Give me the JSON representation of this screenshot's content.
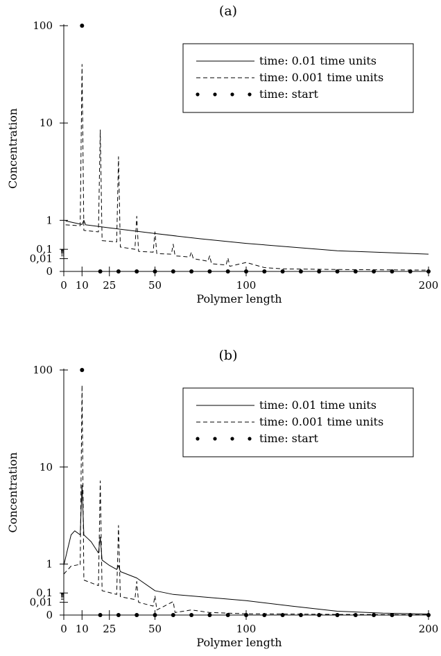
{
  "chart_data": [
    {
      "type": "line",
      "label": "(a)",
      "xlabel": "Polymer length",
      "ylabel": "Concentration",
      "xlim": [
        0,
        200
      ],
      "y_scale": "piecewise-log",
      "x_ticks": [
        {
          "v": 0,
          "t": "0"
        },
        {
          "v": 10,
          "t": "10"
        },
        {
          "v": 25,
          "t": "25"
        },
        {
          "v": 50,
          "t": "50"
        },
        {
          "v": 100,
          "t": "100"
        },
        {
          "v": 200,
          "t": "200"
        }
      ],
      "y_ticks": [
        {
          "v": 0,
          "t": "0"
        },
        {
          "v": 0.01,
          "t": "0,01"
        },
        {
          "v": 0.1,
          "t": "0,1"
        },
        {
          "v": 1,
          "t": "1"
        },
        {
          "v": 10,
          "t": "10"
        },
        {
          "v": 100,
          "t": "100"
        }
      ],
      "legend": {
        "position": "top-right",
        "entries": [
          "time: 0.01 time units",
          "time: 0.001 time units",
          "time: start"
        ]
      },
      "series": [
        {
          "name": "time: 0.01 time units",
          "style": "solid",
          "points": [
            [
              1,
              0.95
            ],
            [
              10,
              0.72
            ],
            [
              11,
              1.0
            ],
            [
              12,
              0.7
            ],
            [
              25,
              0.55
            ],
            [
              50,
              0.35
            ],
            [
              75,
              0.23
            ],
            [
              100,
              0.16
            ],
            [
              150,
              0.07
            ],
            [
              200,
              0.03
            ]
          ]
        },
        {
          "name": "time: 0.001 time units",
          "style": "dashed",
          "points": [
            [
              1,
              0.7
            ],
            [
              9,
              0.65
            ],
            [
              10,
              40
            ],
            [
              11,
              0.45
            ],
            [
              19,
              0.4
            ],
            [
              20,
              8.5
            ],
            [
              21,
              0.2
            ],
            [
              29,
              0.18
            ],
            [
              30,
              4.5
            ],
            [
              31,
              0.12
            ],
            [
              39,
              0.1
            ],
            [
              40,
              1.1
            ],
            [
              41,
              0.06
            ],
            [
              49,
              0.05
            ],
            [
              50,
              0.4
            ],
            [
              51,
              0.035
            ],
            [
              59,
              0.03
            ],
            [
              60,
              0.15
            ],
            [
              61,
              0.02
            ],
            [
              69,
              0.015
            ],
            [
              70,
              0.05
            ],
            [
              71,
              0.01
            ],
            [
              79,
              0.008
            ],
            [
              80,
              0.02
            ],
            [
              81,
              0.006
            ],
            [
              89,
              0.005
            ],
            [
              90,
              0.012
            ],
            [
              91,
              0.004
            ],
            [
              100,
              0.007
            ],
            [
              110,
              0.003
            ],
            [
              120,
              0.002
            ],
            [
              150,
              0.0015
            ],
            [
              200,
              0.001
            ]
          ]
        },
        {
          "name": "time: start",
          "style": "dots",
          "points": [
            [
              10,
              100
            ],
            [
              20,
              0
            ],
            [
              30,
              0
            ],
            [
              40,
              0
            ],
            [
              50,
              0
            ],
            [
              60,
              0
            ],
            [
              70,
              0
            ],
            [
              80,
              0
            ],
            [
              90,
              0
            ],
            [
              100,
              0
            ],
            [
              110,
              0
            ],
            [
              120,
              0
            ],
            [
              130,
              0
            ],
            [
              140,
              0
            ],
            [
              150,
              0
            ],
            [
              160,
              0
            ],
            [
              170,
              0
            ],
            [
              180,
              0
            ],
            [
              190,
              0
            ],
            [
              200,
              0
            ]
          ]
        }
      ]
    },
    {
      "type": "line",
      "label": "(b)",
      "xlabel": "Polymer length",
      "ylabel": "Concentration",
      "xlim": [
        0,
        200
      ],
      "y_scale": "piecewise-log",
      "x_ticks": [
        {
          "v": 0,
          "t": "0"
        },
        {
          "v": 10,
          "t": "10"
        },
        {
          "v": 25,
          "t": "25"
        },
        {
          "v": 50,
          "t": "50"
        },
        {
          "v": 100,
          "t": "100"
        },
        {
          "v": 200,
          "t": "200"
        }
      ],
      "y_ticks": [
        {
          "v": 0,
          "t": "0"
        },
        {
          "v": 0.01,
          "t": "0,01"
        },
        {
          "v": 0.1,
          "t": "0,1"
        },
        {
          "v": 1,
          "t": "1"
        },
        {
          "v": 10,
          "t": "10"
        },
        {
          "v": 100,
          "t": "100"
        }
      ],
      "legend": {
        "position": "top-right",
        "entries": [
          "time: 0.01 time units",
          "time: 0.001 time units",
          "time: start"
        ]
      },
      "series": [
        {
          "name": "time: 0.01 time units",
          "style": "solid",
          "points": [
            [
              0,
              0.9
            ],
            [
              2,
              1.4
            ],
            [
              4,
              2.0
            ],
            [
              6,
              2.2
            ],
            [
              9,
              2.0
            ],
            [
              10,
              6.5
            ],
            [
              11,
              2.0
            ],
            [
              15,
              1.7
            ],
            [
              19,
              1.3
            ],
            [
              20,
              1.9
            ],
            [
              21,
              1.1
            ],
            [
              25,
              0.9
            ],
            [
              29,
              0.65
            ],
            [
              30,
              0.9
            ],
            [
              31,
              0.55
            ],
            [
              40,
              0.33
            ],
            [
              50,
              0.12
            ],
            [
              60,
              0.07
            ],
            [
              75,
              0.04
            ],
            [
              100,
              0.015
            ],
            [
              125,
              0.007
            ],
            [
              150,
              0.003
            ],
            [
              175,
              0.0015
            ],
            [
              200,
              0.0008
            ]
          ]
        },
        {
          "name": "time: 0.001 time units",
          "style": "dashed",
          "points": [
            [
              0,
              0.45
            ],
            [
              4,
              0.85
            ],
            [
              8,
              0.95
            ],
            [
              9,
              0.9
            ],
            [
              10,
              70
            ],
            [
              11,
              0.28
            ],
            [
              19,
              0.18
            ],
            [
              20,
              7.2
            ],
            [
              21,
              0.12
            ],
            [
              29,
              0.07
            ],
            [
              30,
              2.5
            ],
            [
              31,
              0.04
            ],
            [
              39,
              0.02
            ],
            [
              40,
              0.25
            ],
            [
              41,
              0.01
            ],
            [
              49,
              0.007
            ],
            [
              50,
              0.05
            ],
            [
              51,
              0.004
            ],
            [
              60,
              0.012
            ],
            [
              61,
              0.002
            ],
            [
              70,
              0.004
            ],
            [
              80,
              0.002
            ],
            [
              100,
              0.001
            ],
            [
              150,
              0.0005
            ],
            [
              200,
              0.0002
            ]
          ]
        },
        {
          "name": "time: start",
          "style": "dots",
          "points": [
            [
              10,
              100
            ],
            [
              20,
              0
            ],
            [
              30,
              0
            ],
            [
              40,
              0
            ],
            [
              50,
              0
            ],
            [
              60,
              0
            ],
            [
              70,
              0
            ],
            [
              80,
              0
            ],
            [
              90,
              0
            ],
            [
              100,
              0
            ],
            [
              110,
              0
            ],
            [
              120,
              0
            ],
            [
              130,
              0
            ],
            [
              140,
              0
            ],
            [
              150,
              0
            ],
            [
              160,
              0
            ],
            [
              170,
              0
            ],
            [
              180,
              0
            ],
            [
              190,
              0
            ],
            [
              200,
              0
            ]
          ]
        }
      ]
    }
  ]
}
